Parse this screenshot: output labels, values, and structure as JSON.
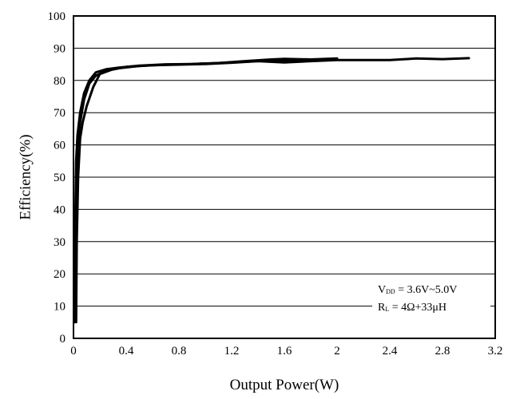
{
  "chart_data": {
    "type": "line",
    "title": "",
    "xlabel": "Output Power(W)",
    "ylabel": "Efficiency(%)",
    "xlim": [
      0,
      3.2
    ],
    "ylim": [
      0,
      100
    ],
    "xticks": [
      0,
      0.4,
      0.8,
      1.2,
      1.6,
      2,
      2.4,
      2.8,
      3.2
    ],
    "xtick_labels": [
      "0",
      "0.4",
      "0.8",
      "1.2",
      "1.6",
      "2",
      "2.4",
      "2.8",
      "3.2"
    ],
    "yticks": [
      0,
      10,
      20,
      30,
      40,
      50,
      60,
      70,
      80,
      90,
      100
    ],
    "ytick_labels": [
      "0",
      "10",
      "20",
      "30",
      "40",
      "50",
      "60",
      "70",
      "80",
      "90",
      "100"
    ],
    "grid": "horizontal",
    "line_color": "#000000",
    "annotation": {
      "vdd_main": "V",
      "vdd_sub": "DD",
      "vdd_value": " = 3.6V~5.0V",
      "rl_main": "R",
      "rl_sub": "L",
      "rl_value": " = 4Ω+33μH"
    },
    "series": [
      {
        "x": [
          0.01,
          0.015,
          0.02,
          0.03,
          0.05,
          0.08,
          0.12,
          0.17,
          0.25,
          0.35,
          0.5,
          0.7,
          0.9,
          1.1,
          1.3,
          1.5,
          1.7,
          1.9,
          2.0
        ],
        "y": [
          5,
          40,
          55,
          63,
          70,
          76,
          80,
          82.5,
          83.5,
          84,
          84.6,
          85,
          85.1,
          85.4,
          85.8,
          86.2,
          86.2,
          86.4,
          86.6
        ]
      },
      {
        "x": [
          0.015,
          0.02,
          0.03,
          0.05,
          0.08,
          0.12,
          0.17,
          0.25,
          0.35,
          0.5,
          0.7,
          0.9,
          1.1,
          1.3,
          1.5,
          1.6,
          1.8,
          2.0
        ],
        "y": [
          10,
          48,
          60,
          67,
          74,
          79,
          81.5,
          83,
          83.8,
          84.5,
          84.9,
          85.1,
          85.4,
          86.0,
          86.5,
          86.7,
          86.5,
          86.8
        ]
      },
      {
        "x": [
          0.02,
          0.025,
          0.035,
          0.05,
          0.07,
          0.1,
          0.15,
          0.2,
          0.3,
          0.4,
          0.6,
          0.8,
          1.0,
          1.2,
          1.4,
          1.6,
          1.8,
          2.0,
          2.2,
          2.4,
          2.6,
          2.8,
          3.0
        ],
        "y": [
          5,
          30,
          50,
          62,
          67,
          72,
          78,
          82,
          83.5,
          84.2,
          84.7,
          84.9,
          85.1,
          85.5,
          86.0,
          85.6,
          86.0,
          86.3,
          86.3,
          86.3,
          86.8,
          86.6,
          86.9
        ]
      }
    ]
  }
}
